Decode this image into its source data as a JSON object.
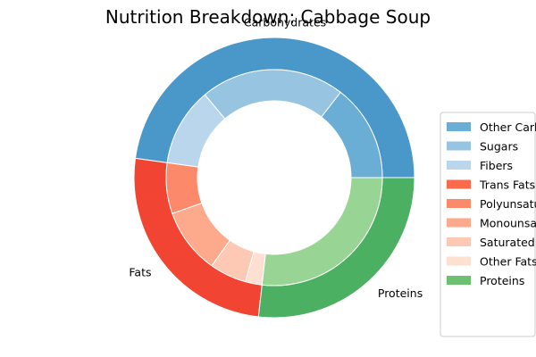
{
  "chart_data": {
    "type": "pie",
    "title": "Nutrition Breakdown:  Cabbage Soup",
    "legend_placement": "right",
    "outer": {
      "slices": [
        {
          "label": "Carbohydrates",
          "value": 47.8,
          "color": "#4a98c9"
        },
        {
          "label": "Fats",
          "value": 25.4,
          "color": "#f14432"
        },
        {
          "label": "Proteins",
          "value": 26.8,
          "color": "#4bb062"
        }
      ]
    },
    "inner": {
      "slices": [
        {
          "label": "Other Carbohydrates",
          "value": 14.5,
          "group": "Carbohydrates",
          "color": "#6aaed6"
        },
        {
          "label": "Sugars",
          "value": 21.6,
          "group": "Carbohydrates",
          "color": "#97c4e0"
        },
        {
          "label": "Fibers",
          "value": 11.7,
          "group": "Carbohydrates",
          "color": "#b9d6ec"
        },
        {
          "label": "Trans Fats",
          "value": 0,
          "group": "Fats",
          "color": "#fb6a4a"
        },
        {
          "label": "Polyunsaturated Fats",
          "value": 7.6,
          "group": "Fats",
          "color": "#fc8a6a"
        },
        {
          "label": "Monounsaturated Fats",
          "value": 9.8,
          "group": "Fats",
          "color": "#fcaa8b"
        },
        {
          "label": "Saturated Fats",
          "value": 5.5,
          "group": "Fats",
          "color": "#fdc9b4"
        },
        {
          "label": "Other Fats",
          "value": 2.5,
          "group": "Fats",
          "color": "#fee0d3"
        },
        {
          "label": "Proteins",
          "value": 26.8,
          "group": "Proteins",
          "color": "#98d594"
        }
      ]
    },
    "legend": {
      "entries": [
        {
          "label": "Other Carbohydrates",
          "color": "#6aaed6"
        },
        {
          "label": "Sugars",
          "color": "#97c4e0"
        },
        {
          "label": "Fibers",
          "color": "#b9d6ec"
        },
        {
          "label": "Trans Fats",
          "color": "#fb6a4a"
        },
        {
          "label": "Polyunsaturated Fats",
          "color": "#fc8a6a"
        },
        {
          "label": "Monounsaturated Fats",
          "color": "#fcaa8b"
        },
        {
          "label": "Saturated Fats",
          "color": "#fdc9b4"
        },
        {
          "label": "Other Fats",
          "color": "#fee0d3"
        },
        {
          "label": "Proteins",
          "color": "#6cc070"
        }
      ]
    }
  }
}
